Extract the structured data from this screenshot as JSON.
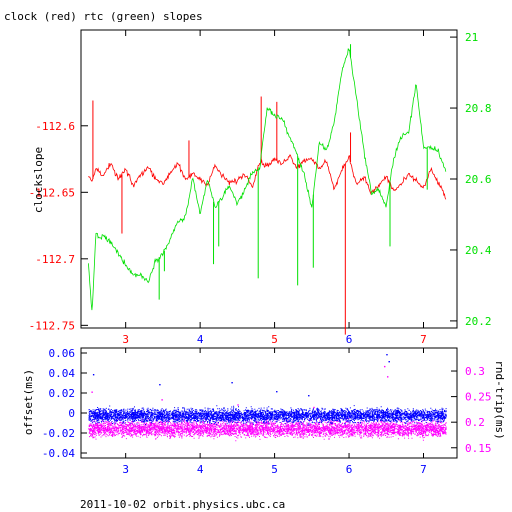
{
  "colors": {
    "clock": "#ff0000",
    "rtc": "#00e000",
    "offset": "#0000ff",
    "rndtrip": "#ff00ff",
    "axis": "#000000"
  },
  "chart_data": [
    {
      "type": "line",
      "title": "clock (red) rtc (green) slopes",
      "ylabel": "clockslope",
      "y2label": "",
      "xlim": [
        2.4,
        7.45
      ],
      "ylim": [
        -112.752,
        -112.528
      ],
      "y2lim": [
        20.18,
        21.02
      ],
      "xticks": [
        3,
        4,
        5,
        6,
        7
      ],
      "xtick_labels": [
        "3",
        "4",
        "5",
        "6",
        "7"
      ],
      "yticks": [
        -112.6,
        -112.65,
        -112.7,
        -112.75
      ],
      "ytick_labels": [
        "-112.6",
        "-112.65",
        "-112.7",
        "-112.75"
      ],
      "y2ticks": [
        20.2,
        20.4,
        20.6,
        20.8,
        21.0
      ],
      "y2tick_labels": [
        "20.2",
        "20.4",
        "20.6",
        "20.8",
        "21"
      ],
      "grid": false,
      "series": [
        {
          "name": "clock",
          "axis": "left",
          "x": [
            2.5,
            2.55,
            2.6,
            2.7,
            2.8,
            2.9,
            3.0,
            3.1,
            3.2,
            3.3,
            3.4,
            3.5,
            3.6,
            3.7,
            3.8,
            3.9,
            4.0,
            4.1,
            4.2,
            4.3,
            4.4,
            4.5,
            4.6,
            4.7,
            4.8,
            4.9,
            5.0,
            5.1,
            5.2,
            5.3,
            5.4,
            5.5,
            5.6,
            5.7,
            5.8,
            5.9,
            6.0,
            6.1,
            6.2,
            6.3,
            6.4,
            6.5,
            6.6,
            6.7,
            6.8,
            6.9,
            7.0,
            7.1,
            7.2,
            7.3
          ],
          "y": [
            -112.638,
            -112.642,
            -112.632,
            -112.637,
            -112.629,
            -112.64,
            -112.633,
            -112.645,
            -112.637,
            -112.631,
            -112.639,
            -112.644,
            -112.635,
            -112.628,
            -112.641,
            -112.636,
            -112.64,
            -112.644,
            -112.63,
            -112.638,
            -112.643,
            -112.641,
            -112.636,
            -112.645,
            -112.627,
            -112.63,
            -112.625,
            -112.629,
            -112.622,
            -112.631,
            -112.626,
            -112.624,
            -112.633,
            -112.626,
            -112.648,
            -112.634,
            -112.623,
            -112.644,
            -112.638,
            -112.651,
            -112.645,
            -112.638,
            -112.649,
            -112.644,
            -112.637,
            -112.641,
            -112.647,
            -112.633,
            -112.643,
            -112.654
          ]
        },
        {
          "name": "rtc",
          "axis": "right",
          "x": [
            2.5,
            2.55,
            2.6,
            2.65,
            2.7,
            2.8,
            2.9,
            3.0,
            3.1,
            3.2,
            3.3,
            3.4,
            3.5,
            3.6,
            3.7,
            3.8,
            3.9,
            4.0,
            4.1,
            4.2,
            4.3,
            4.4,
            4.5,
            4.6,
            4.7,
            4.8,
            4.9,
            5.0,
            5.1,
            5.2,
            5.3,
            5.4,
            5.5,
            5.6,
            5.7,
            5.8,
            5.9,
            6.0,
            6.1,
            6.2,
            6.3,
            6.4,
            6.5,
            6.6,
            6.7,
            6.8,
            6.9,
            7.0,
            7.1,
            7.2,
            7.3
          ],
          "y": [
            20.36,
            20.22,
            20.45,
            20.43,
            20.44,
            20.42,
            20.39,
            20.36,
            20.33,
            20.33,
            20.31,
            20.37,
            20.39,
            20.43,
            20.48,
            20.49,
            20.6,
            20.5,
            20.6,
            20.52,
            20.55,
            20.58,
            20.53,
            20.57,
            20.62,
            20.63,
            20.8,
            20.78,
            20.77,
            20.72,
            20.67,
            20.61,
            20.52,
            20.7,
            20.68,
            20.76,
            20.9,
            20.97,
            20.83,
            20.68,
            20.56,
            20.57,
            20.52,
            20.66,
            20.72,
            20.73,
            20.87,
            20.69,
            20.69,
            20.68,
            20.62
          ]
        }
      ],
      "spikes": [
        {
          "series": "clock",
          "x": [
            2.56,
            2.95,
            3.85,
            4.82,
            5.03,
            5.95,
            6.02
          ],
          "y": [
            -112.581,
            -112.681,
            -112.611,
            -112.578,
            -112.582,
            -112.757,
            -112.605
          ]
        },
        {
          "series": "rtc",
          "x": [
            3.45,
            3.52,
            4.18,
            4.25,
            4.78,
            5.31,
            5.52,
            6.02,
            6.55,
            7.05
          ],
          "y": [
            20.26,
            20.34,
            20.36,
            20.41,
            20.32,
            20.3,
            20.35,
            20.98,
            20.41,
            20.57
          ]
        }
      ]
    },
    {
      "type": "scatter",
      "ylabel": "offset(ms)",
      "y2label": "rnd-trip(ms)",
      "xlim": [
        2.4,
        7.45
      ],
      "ylim": [
        -0.045,
        0.065
      ],
      "y2lim": [
        0.13,
        0.345
      ],
      "xticks": [
        3,
        4,
        5,
        6,
        7
      ],
      "xtick_labels": [
        "3",
        "4",
        "5",
        "6",
        "7"
      ],
      "yticks": [
        0.06,
        0.04,
        0.02,
        0,
        -0.02,
        -0.04
      ],
      "ytick_labels": [
        "0.06",
        "0.04",
        "0.02",
        "0",
        "-0.02",
        "-0.04"
      ],
      "y2ticks": [
        0.15,
        0.2,
        0.25,
        0.3
      ],
      "y2tick_labels": [
        "0.15",
        "0.2",
        "0.25",
        "0.3"
      ],
      "grid": false,
      "series": [
        {
          "name": "offset",
          "axis": "left",
          "x_range": [
            2.5,
            7.3
          ],
          "y_center": -0.002,
          "y_spread": 0.007
        },
        {
          "name": "rnd-trip",
          "axis": "right",
          "x_range": [
            2.5,
            7.3
          ],
          "y_center": 0.188,
          "y_spread": 0.016
        }
      ],
      "outliers": [
        {
          "series": "offset",
          "x": [
            2.56,
            3.45,
            4.42,
            5.02,
            5.45,
            6.5,
            6.53
          ],
          "y": [
            0.039,
            0.029,
            0.031,
            0.022,
            0.018,
            0.059,
            0.052
          ]
        },
        {
          "series": "rnd-trip",
          "x": [
            2.54,
            3.48,
            4.5,
            5.52,
            6.47,
            6.51
          ],
          "y": [
            0.26,
            0.245,
            0.235,
            0.23,
            0.31,
            0.29
          ]
        }
      ]
    }
  ],
  "footer": "2011-10-02 orbit.physics.ubc.ca"
}
